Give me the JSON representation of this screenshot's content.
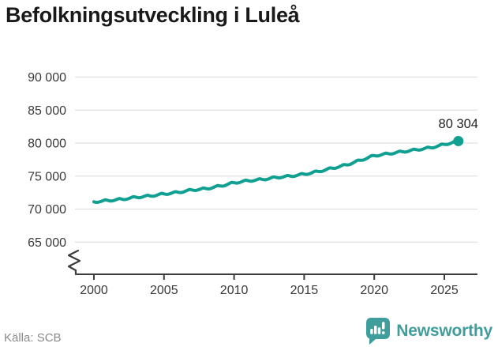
{
  "title": "Befolkningsutveckling i Luleå",
  "footer": {
    "source": "Källa: SCB",
    "brand": "Newsworthy"
  },
  "colors": {
    "line": "#10a092",
    "dot": "#10a092",
    "grid": "#e0e0e0",
    "axis": "#3c3c3c",
    "tick_label": "#3a3a3a",
    "annotation": "#1f1f1f",
    "title": "#191919",
    "source": "#8a8a8a",
    "brand_teal": "#3f9e9b",
    "background": "#ffffff"
  },
  "chart_data": {
    "type": "line",
    "title": "Befolkningsutveckling i Luleå",
    "xlabel": "",
    "ylabel": "",
    "x": [
      2000,
      2001,
      2002,
      2003,
      2004,
      2005,
      2006,
      2007,
      2008,
      2009,
      2010,
      2011,
      2012,
      2013,
      2014,
      2015,
      2016,
      2017,
      2018,
      2019,
      2020,
      2021,
      2022,
      2023,
      2024,
      2025,
      2026
    ],
    "values": [
      71100,
      71300,
      71500,
      71800,
      72000,
      72300,
      72550,
      72900,
      73100,
      73500,
      74000,
      74300,
      74500,
      74800,
      75000,
      75300,
      75700,
      76200,
      76700,
      77400,
      78100,
      78400,
      78700,
      79000,
      79300,
      79800,
      80304
    ],
    "last_value": 80304,
    "last_value_label": "80 304",
    "ylim": [
      65000,
      90000
    ],
    "xlim": [
      2000,
      2026
    ],
    "yticks": [
      90000,
      85000,
      80000,
      75000,
      70000,
      65000
    ],
    "ytick_labels": [
      "90 000",
      "85 000",
      "80 000",
      "75 000",
      "70 000",
      "65 000"
    ],
    "xticks": [
      2000,
      2005,
      2010,
      2015,
      2020,
      2025
    ],
    "xtick_labels": [
      "2000",
      "2005",
      "2010",
      "2015",
      "2020",
      "2025"
    ],
    "grid": true,
    "legend": false,
    "axis_break": true,
    "seasonal_amplitude": 130,
    "seasonal_shape": [
      0,
      -0.45,
      -0.85,
      -1,
      -0.9,
      -0.65,
      -0.35,
      0.05,
      0.45,
      0.85,
      1,
      0.55
    ]
  }
}
